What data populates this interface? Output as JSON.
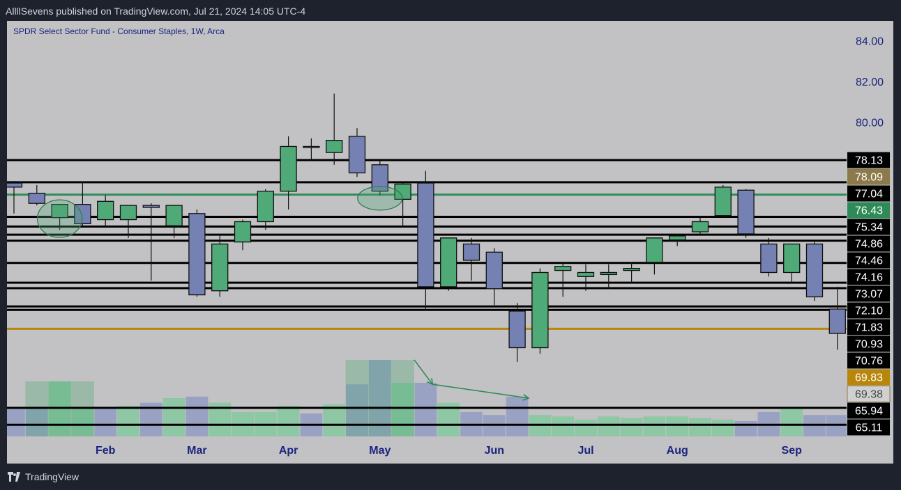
{
  "header": {
    "text": "AllllSevens published on TradingView.com, Jul 21, 2024 14:05 UTC-4"
  },
  "footer": {
    "brand": "TradingView",
    "logo_icon": "tradingview-logo-icon"
  },
  "chart_data": {
    "type": "candlestick",
    "title": "SPDR Select Sector Fund - Consumer Staples, 1W, Arca",
    "x_labels": [
      "Feb",
      "Mar",
      "Apr",
      "May",
      "Jun",
      "Jul",
      "Aug",
      "Sep"
    ],
    "y_axis": {
      "range": [
        64.5,
        85
      ],
      "ticks": [
        "84.00",
        "82.00",
        "80.00"
      ]
    },
    "colors": {
      "up": "#4faa78",
      "down": "#7481b2",
      "level": "#000000",
      "green_level": "#2e8b57",
      "gold_level": "#b8860b",
      "volume_up": "#8ec7a4",
      "volume_down": "#9aa2c4"
    },
    "levels": [
      {
        "value": 78.13,
        "label": "78.13",
        "color": "#000000",
        "label_bg": "#000000",
        "label_color": "#ffffff",
        "line": true
      },
      {
        "value": 78.09,
        "label": "78.09",
        "color": "#8c7a4a",
        "label_bg": "#8c7a4a",
        "label_color": "#ffffff",
        "line": false
      },
      {
        "value": 77.04,
        "label": "77.04",
        "color": "#000000",
        "label_bg": "#000000",
        "label_color": "#ffffff",
        "line": true
      },
      {
        "value": 76.43,
        "label": "76.43",
        "color": "#2e8b57",
        "label_bg": "#2e8b57",
        "label_color": "#ffffff",
        "line": true
      },
      {
        "value": 75.34,
        "label": "75.34",
        "color": "#000000",
        "label_bg": "#000000",
        "label_color": "#ffffff",
        "line": true
      },
      {
        "value": 74.86,
        "label": "74.86",
        "color": "#000000",
        "label_bg": "#000000",
        "label_color": "#ffffff",
        "line": true
      },
      {
        "value": 74.46,
        "label": "74.46",
        "color": "#000000",
        "label_bg": "#000000",
        "label_color": "#ffffff",
        "line": true
      },
      {
        "value": 74.16,
        "label": "74.16",
        "color": "#000000",
        "label_bg": "#000000",
        "label_color": "#ffffff",
        "line": true
      },
      {
        "value": 73.07,
        "label": "73.07",
        "color": "#000000",
        "label_bg": "#000000",
        "label_color": "#ffffff",
        "line": true
      },
      {
        "value": 72.1,
        "label": "72.10",
        "color": "#000000",
        "label_bg": "#000000",
        "label_color": "#ffffff",
        "line": true
      },
      {
        "value": 71.83,
        "label": "71.83",
        "color": "#000000",
        "label_bg": "#000000",
        "label_color": "#ffffff",
        "line": true
      },
      {
        "value": 70.93,
        "label": "70.93",
        "color": "#000000",
        "label_bg": "#000000",
        "label_color": "#ffffff",
        "line": true
      },
      {
        "value": 70.76,
        "label": "70.76",
        "color": "#000000",
        "label_bg": "#000000",
        "label_color": "#ffffff",
        "line": true
      },
      {
        "value": 69.83,
        "label": "69.83",
        "color": "#b8860b",
        "label_bg": "#b8860b",
        "label_color": "#ffffff",
        "line": true
      },
      {
        "value": 69.38,
        "label": "69.38",
        "color": "#8c7a4a",
        "label_bg": "#d0d0d0",
        "label_color": "#444444",
        "line": false
      },
      {
        "value": 65.94,
        "label": "65.94",
        "color": "#000000",
        "label_bg": "#000000",
        "label_color": "#ffffff",
        "line": true
      },
      {
        "value": 65.11,
        "label": "65.11",
        "color": "#000000",
        "label_bg": "#000000",
        "label_color": "#ffffff",
        "line": true
      }
    ],
    "candles": [
      {
        "o": 77.0,
        "h": 77.1,
        "c": 76.8,
        "l": 75.5
      },
      {
        "o": 76.5,
        "h": 76.9,
        "c": 76.0,
        "l": 75.9
      },
      {
        "o": 75.3,
        "h": 75.9,
        "c": 75.95,
        "l": 74.7
      },
      {
        "o": 75.95,
        "h": 77.0,
        "c": 75.0,
        "l": 74.9
      },
      {
        "o": 75.2,
        "h": 76.4,
        "c": 76.1,
        "l": 74.8
      },
      {
        "o": 75.2,
        "h": 75.9,
        "c": 75.9,
        "l": 74.3
      },
      {
        "o": 75.9,
        "h": 76.0,
        "c": 75.8,
        "l": 72.2
      },
      {
        "o": 74.9,
        "h": 75.9,
        "c": 75.9,
        "l": 74.3
      },
      {
        "o": 75.5,
        "h": 75.7,
        "c": 71.5,
        "l": 71.4
      },
      {
        "o": 71.7,
        "h": 74.5,
        "c": 74.0,
        "l": 71.4
      },
      {
        "o": 74.1,
        "h": 75.2,
        "c": 75.1,
        "l": 73.7
      },
      {
        "o": 75.1,
        "h": 76.7,
        "c": 76.6,
        "l": 74.7
      },
      {
        "o": 76.6,
        "h": 79.3,
        "c": 78.8,
        "l": 75.7
      },
      {
        "o": 78.8,
        "h": 79.2,
        "c": 78.8,
        "l": 78.1
      },
      {
        "o": 78.5,
        "h": 81.4,
        "c": 79.1,
        "l": 77.9
      },
      {
        "o": 79.3,
        "h": 79.7,
        "c": 77.5,
        "l": 77.3
      },
      {
        "o": 77.9,
        "h": 78.1,
        "c": 76.6,
        "l": 76.4
      },
      {
        "o": 76.2,
        "h": 77.0,
        "c": 76.95,
        "l": 74.9
      },
      {
        "o": 77.0,
        "h": 77.6,
        "c": 71.9,
        "l": 70.8
      },
      {
        "o": 71.9,
        "h": 74.3,
        "c": 74.3,
        "l": 71.7
      },
      {
        "o": 74.0,
        "h": 74.3,
        "c": 73.2,
        "l": 72.2
      },
      {
        "o": 73.6,
        "h": 73.8,
        "c": 71.8,
        "l": 71.0
      },
      {
        "o": 70.7,
        "h": 71.1,
        "c": 68.9,
        "l": 68.2
      },
      {
        "o": 68.9,
        "h": 72.8,
        "c": 72.6,
        "l": 68.6
      },
      {
        "o": 72.7,
        "h": 73.1,
        "c": 72.9,
        "l": 71.4
      },
      {
        "o": 72.4,
        "h": 73.0,
        "c": 72.6,
        "l": 71.7
      },
      {
        "o": 72.5,
        "h": 73.0,
        "c": 72.6,
        "l": 71.8
      },
      {
        "o": 72.7,
        "h": 73.1,
        "c": 72.8,
        "l": 72.1
      },
      {
        "o": 73.1,
        "h": 74.3,
        "c": 74.3,
        "l": 72.5
      },
      {
        "o": 74.2,
        "h": 74.5,
        "c": 74.4,
        "l": 73.9
      },
      {
        "o": 74.6,
        "h": 75.3,
        "c": 75.1,
        "l": 74.5
      },
      {
        "o": 75.4,
        "h": 76.9,
        "c": 76.8,
        "l": 75.3
      },
      {
        "o": 76.65,
        "h": 76.7,
        "c": 74.5,
        "l": 74.3
      },
      {
        "o": 74.0,
        "h": 74.3,
        "c": 72.6,
        "l": 72.4
      },
      {
        "o": 72.6,
        "h": 74.0,
        "c": 74.0,
        "l": 72.1
      },
      {
        "o": 74.0,
        "h": 74.1,
        "c": 71.4,
        "l": 71.2
      },
      {
        "o": 70.8,
        "h": 71.9,
        "c": 69.6,
        "l": 68.8
      }
    ],
    "volume": [
      {
        "v": 19,
        "up": false
      },
      {
        "v": 19,
        "up": false
      },
      {
        "v": 36,
        "up": true
      },
      {
        "v": 19,
        "up": true
      },
      {
        "v": 19,
        "up": false
      },
      {
        "v": 20,
        "up": true
      },
      {
        "v": 22,
        "up": false
      },
      {
        "v": 25,
        "up": true
      },
      {
        "v": 26,
        "up": false
      },
      {
        "v": 22,
        "up": true
      },
      {
        "v": 16,
        "up": true
      },
      {
        "v": 16,
        "up": true
      },
      {
        "v": 20,
        "up": true
      },
      {
        "v": 15,
        "up": false
      },
      {
        "v": 21,
        "up": true
      },
      {
        "v": 34,
        "up": false
      },
      {
        "v": 50,
        "up": false
      },
      {
        "v": 35,
        "up": true
      },
      {
        "v": 35,
        "up": false
      },
      {
        "v": 22,
        "up": true
      },
      {
        "v": 16,
        "up": false
      },
      {
        "v": 14,
        "up": false
      },
      {
        "v": 26,
        "up": false
      },
      {
        "v": 14,
        "up": true
      },
      {
        "v": 13,
        "up": true
      },
      {
        "v": 11,
        "up": true
      },
      {
        "v": 13,
        "up": true
      },
      {
        "v": 12,
        "up": true
      },
      {
        "v": 13,
        "up": true
      },
      {
        "v": 13,
        "up": true
      },
      {
        "v": 12,
        "up": true
      },
      {
        "v": 11,
        "up": true
      },
      {
        "v": 10,
        "up": false
      },
      {
        "v": 16,
        "up": false
      },
      {
        "v": 18,
        "up": true
      },
      {
        "v": 14,
        "up": false
      },
      {
        "v": 14,
        "up": false
      }
    ],
    "annotations": [
      {
        "type": "ellipse",
        "candle": 2,
        "price": 75.25
      },
      {
        "type": "ellipse",
        "candle": 16,
        "price": 76.25
      },
      {
        "type": "highlight-box",
        "candle_from": 1,
        "candle_to": 3,
        "volume_level": 36
      },
      {
        "type": "highlight-box",
        "candle_from": 15,
        "candle_to": 17,
        "volume_level": 50
      },
      {
        "type": "arrow",
        "from_candle": 17.5,
        "from_volume": 50,
        "to_candle": 18.3,
        "to_volume": 34
      },
      {
        "type": "arrow",
        "from_candle": 18.3,
        "from_volume": 34,
        "to_candle": 22.5,
        "to_volume": 25
      }
    ]
  }
}
